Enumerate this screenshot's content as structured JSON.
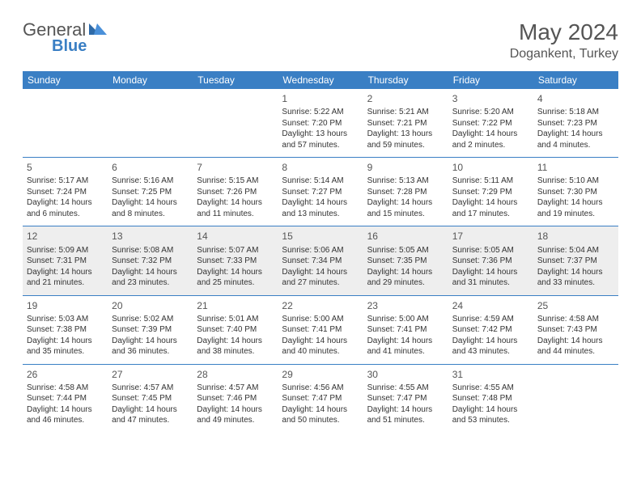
{
  "logo": {
    "text1": "General",
    "text2": "Blue"
  },
  "title": "May 2024",
  "location": "Dogankent, Turkey",
  "colors": {
    "header_bg": "#3a7fc4",
    "header_fg": "#ffffff",
    "band_bg": "#eeeeee",
    "rule": "#3a7fc4"
  },
  "weekdays": [
    "Sunday",
    "Monday",
    "Tuesday",
    "Wednesday",
    "Thursday",
    "Friday",
    "Saturday"
  ],
  "weeks": [
    {
      "gray": false,
      "days": [
        null,
        null,
        null,
        {
          "n": "1",
          "sr": "Sunrise: 5:22 AM",
          "ss": "Sunset: 7:20 PM",
          "dl1": "Daylight: 13 hours",
          "dl2": "and 57 minutes."
        },
        {
          "n": "2",
          "sr": "Sunrise: 5:21 AM",
          "ss": "Sunset: 7:21 PM",
          "dl1": "Daylight: 13 hours",
          "dl2": "and 59 minutes."
        },
        {
          "n": "3",
          "sr": "Sunrise: 5:20 AM",
          "ss": "Sunset: 7:22 PM",
          "dl1": "Daylight: 14 hours",
          "dl2": "and 2 minutes."
        },
        {
          "n": "4",
          "sr": "Sunrise: 5:18 AM",
          "ss": "Sunset: 7:23 PM",
          "dl1": "Daylight: 14 hours",
          "dl2": "and 4 minutes."
        }
      ]
    },
    {
      "gray": false,
      "days": [
        {
          "n": "5",
          "sr": "Sunrise: 5:17 AM",
          "ss": "Sunset: 7:24 PM",
          "dl1": "Daylight: 14 hours",
          "dl2": "and 6 minutes."
        },
        {
          "n": "6",
          "sr": "Sunrise: 5:16 AM",
          "ss": "Sunset: 7:25 PM",
          "dl1": "Daylight: 14 hours",
          "dl2": "and 8 minutes."
        },
        {
          "n": "7",
          "sr": "Sunrise: 5:15 AM",
          "ss": "Sunset: 7:26 PM",
          "dl1": "Daylight: 14 hours",
          "dl2": "and 11 minutes."
        },
        {
          "n": "8",
          "sr": "Sunrise: 5:14 AM",
          "ss": "Sunset: 7:27 PM",
          "dl1": "Daylight: 14 hours",
          "dl2": "and 13 minutes."
        },
        {
          "n": "9",
          "sr": "Sunrise: 5:13 AM",
          "ss": "Sunset: 7:28 PM",
          "dl1": "Daylight: 14 hours",
          "dl2": "and 15 minutes."
        },
        {
          "n": "10",
          "sr": "Sunrise: 5:11 AM",
          "ss": "Sunset: 7:29 PM",
          "dl1": "Daylight: 14 hours",
          "dl2": "and 17 minutes."
        },
        {
          "n": "11",
          "sr": "Sunrise: 5:10 AM",
          "ss": "Sunset: 7:30 PM",
          "dl1": "Daylight: 14 hours",
          "dl2": "and 19 minutes."
        }
      ]
    },
    {
      "gray": true,
      "days": [
        {
          "n": "12",
          "sr": "Sunrise: 5:09 AM",
          "ss": "Sunset: 7:31 PM",
          "dl1": "Daylight: 14 hours",
          "dl2": "and 21 minutes."
        },
        {
          "n": "13",
          "sr": "Sunrise: 5:08 AM",
          "ss": "Sunset: 7:32 PM",
          "dl1": "Daylight: 14 hours",
          "dl2": "and 23 minutes."
        },
        {
          "n": "14",
          "sr": "Sunrise: 5:07 AM",
          "ss": "Sunset: 7:33 PM",
          "dl1": "Daylight: 14 hours",
          "dl2": "and 25 minutes."
        },
        {
          "n": "15",
          "sr": "Sunrise: 5:06 AM",
          "ss": "Sunset: 7:34 PM",
          "dl1": "Daylight: 14 hours",
          "dl2": "and 27 minutes."
        },
        {
          "n": "16",
          "sr": "Sunrise: 5:05 AM",
          "ss": "Sunset: 7:35 PM",
          "dl1": "Daylight: 14 hours",
          "dl2": "and 29 minutes."
        },
        {
          "n": "17",
          "sr": "Sunrise: 5:05 AM",
          "ss": "Sunset: 7:36 PM",
          "dl1": "Daylight: 14 hours",
          "dl2": "and 31 minutes."
        },
        {
          "n": "18",
          "sr": "Sunrise: 5:04 AM",
          "ss": "Sunset: 7:37 PM",
          "dl1": "Daylight: 14 hours",
          "dl2": "and 33 minutes."
        }
      ]
    },
    {
      "gray": false,
      "days": [
        {
          "n": "19",
          "sr": "Sunrise: 5:03 AM",
          "ss": "Sunset: 7:38 PM",
          "dl1": "Daylight: 14 hours",
          "dl2": "and 35 minutes."
        },
        {
          "n": "20",
          "sr": "Sunrise: 5:02 AM",
          "ss": "Sunset: 7:39 PM",
          "dl1": "Daylight: 14 hours",
          "dl2": "and 36 minutes."
        },
        {
          "n": "21",
          "sr": "Sunrise: 5:01 AM",
          "ss": "Sunset: 7:40 PM",
          "dl1": "Daylight: 14 hours",
          "dl2": "and 38 minutes."
        },
        {
          "n": "22",
          "sr": "Sunrise: 5:00 AM",
          "ss": "Sunset: 7:41 PM",
          "dl1": "Daylight: 14 hours",
          "dl2": "and 40 minutes."
        },
        {
          "n": "23",
          "sr": "Sunrise: 5:00 AM",
          "ss": "Sunset: 7:41 PM",
          "dl1": "Daylight: 14 hours",
          "dl2": "and 41 minutes."
        },
        {
          "n": "24",
          "sr": "Sunrise: 4:59 AM",
          "ss": "Sunset: 7:42 PM",
          "dl1": "Daylight: 14 hours",
          "dl2": "and 43 minutes."
        },
        {
          "n": "25",
          "sr": "Sunrise: 4:58 AM",
          "ss": "Sunset: 7:43 PM",
          "dl1": "Daylight: 14 hours",
          "dl2": "and 44 minutes."
        }
      ]
    },
    {
      "gray": false,
      "days": [
        {
          "n": "26",
          "sr": "Sunrise: 4:58 AM",
          "ss": "Sunset: 7:44 PM",
          "dl1": "Daylight: 14 hours",
          "dl2": "and 46 minutes."
        },
        {
          "n": "27",
          "sr": "Sunrise: 4:57 AM",
          "ss": "Sunset: 7:45 PM",
          "dl1": "Daylight: 14 hours",
          "dl2": "and 47 minutes."
        },
        {
          "n": "28",
          "sr": "Sunrise: 4:57 AM",
          "ss": "Sunset: 7:46 PM",
          "dl1": "Daylight: 14 hours",
          "dl2": "and 49 minutes."
        },
        {
          "n": "29",
          "sr": "Sunrise: 4:56 AM",
          "ss": "Sunset: 7:47 PM",
          "dl1": "Daylight: 14 hours",
          "dl2": "and 50 minutes."
        },
        {
          "n": "30",
          "sr": "Sunrise: 4:55 AM",
          "ss": "Sunset: 7:47 PM",
          "dl1": "Daylight: 14 hours",
          "dl2": "and 51 minutes."
        },
        {
          "n": "31",
          "sr": "Sunrise: 4:55 AM",
          "ss": "Sunset: 7:48 PM",
          "dl1": "Daylight: 14 hours",
          "dl2": "and 53 minutes."
        },
        null
      ]
    }
  ]
}
